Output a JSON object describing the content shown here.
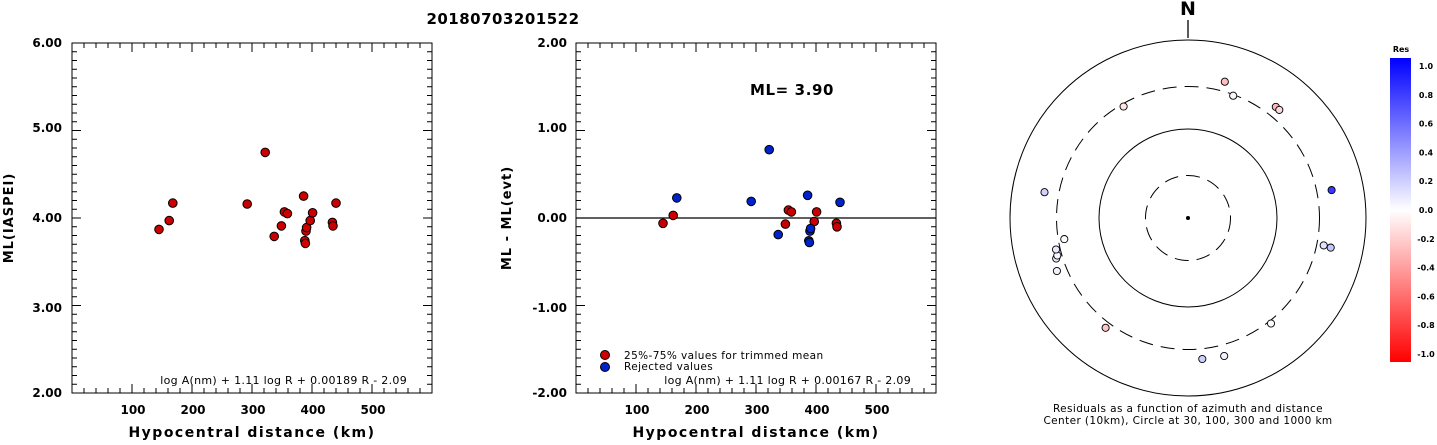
{
  "title": "20180703201522",
  "chart_data": [
    {
      "type": "scatter",
      "ylabel": "ML(IASPEI)",
      "xlabel": "Hypocentral distance (km)",
      "xlim": [
        0,
        600
      ],
      "ylim": [
        2.0,
        6.0
      ],
      "xticks": [
        "100",
        "200",
        "300",
        "400",
        "500"
      ],
      "yticks": [
        "2.00",
        "3.00",
        "4.00",
        "5.00",
        "6.00"
      ],
      "formula": "log A(nm) + 1.11 log R + 0.00189 R - 2.09",
      "series": [
        {
          "color": "#cc0000",
          "points": [
            [
              145,
              3.87
            ],
            [
              162,
              3.97
            ],
            [
              168,
              4.17
            ],
            [
              292,
              4.16
            ],
            [
              322,
              4.75
            ],
            [
              337,
              3.79
            ],
            [
              349,
              3.91
            ],
            [
              354,
              4.07
            ],
            [
              359,
              4.05
            ],
            [
              386,
              4.25
            ],
            [
              388,
              3.74
            ],
            [
              389,
              3.71
            ],
            [
              390,
              3.85
            ],
            [
              391,
              3.89
            ],
            [
              397,
              3.97
            ],
            [
              401,
              4.06
            ],
            [
              434,
              3.95
            ],
            [
              435,
              3.91
            ],
            [
              440,
              4.17
            ]
          ]
        }
      ]
    },
    {
      "type": "scatter",
      "ylabel": "ML - ML(evt)",
      "xlabel": "Hypocentral distance (km)",
      "xlim": [
        0,
        600
      ],
      "ylim": [
        -2.0,
        2.0
      ],
      "xticks": [
        "100",
        "200",
        "300",
        "400",
        "500"
      ],
      "yticks": [
        "-2.00",
        "-1.00",
        "0.00",
        "1.00",
        "2.00"
      ],
      "annotation": "ML= 3.90",
      "formula": "log A(nm) + 1.11 log R + 0.00167 R - 2.09",
      "legend": {
        "position": "bottom-left",
        "entries": [
          {
            "label": "25%-75% values for trimmed mean",
            "color": "#cc0000"
          },
          {
            "label": "Rejected values",
            "color": "#0022cc"
          }
        ]
      },
      "series": [
        {
          "name": "25%-75% values for trimmed mean",
          "color": "#cc0000",
          "points": [
            [
              145,
              -0.06
            ],
            [
              162,
              0.03
            ],
            [
              349,
              -0.07
            ],
            [
              354,
              0.09
            ],
            [
              359,
              0.07
            ],
            [
              397,
              -0.04
            ],
            [
              401,
              0.07
            ],
            [
              434,
              -0.06
            ],
            [
              435,
              -0.1
            ]
          ]
        },
        {
          "name": "Rejected values",
          "color": "#0022cc",
          "points": [
            [
              168,
              0.23
            ],
            [
              292,
              0.19
            ],
            [
              322,
              0.78
            ],
            [
              337,
              -0.19
            ],
            [
              386,
              0.26
            ],
            [
              388,
              -0.26
            ],
            [
              389,
              -0.28
            ],
            [
              390,
              -0.15
            ],
            [
              391,
              -0.12
            ],
            [
              440,
              0.18
            ]
          ]
        }
      ]
    },
    {
      "type": "polar-scatter",
      "north_label": "N",
      "caption_line1": "Residuals as a function of azimuth and distance",
      "caption_line2": "Center (10km), Circle at 30, 100, 300 and 1000 km",
      "rings_km": [
        30,
        100,
        300,
        1000
      ],
      "colorbar": {
        "title": "Res",
        "ticks": [
          "1.0",
          "0.8",
          "0.6",
          "0.4",
          "0.2",
          "0.0",
          "-0.2",
          "-0.4",
          "-0.6",
          "-0.8",
          "-1.0"
        ],
        "stops": [
          {
            "value": 1.0,
            "color": "#0000ff"
          },
          {
            "value": 0.0,
            "color": "#ffffff"
          },
          {
            "value": -1.0,
            "color": "#ff0000"
          }
        ]
      },
      "points": [
        {
          "azimuth": 15.1,
          "distance_km": 386,
          "res": -0.26
        },
        {
          "azimuth": 20.3,
          "distance_km": 292,
          "res": 0.03
        },
        {
          "azimuth": 38.3,
          "distance_km": 390,
          "res": -0.28
        },
        {
          "azimuth": 40.2,
          "distance_km": 389,
          "res": -0.15
        },
        {
          "azimuth": 79.0,
          "distance_km": 440,
          "res": 0.78
        },
        {
          "azimuth": 101.4,
          "distance_km": 359,
          "res": 0.12
        },
        {
          "azimuth": 101.7,
          "distance_km": 434,
          "res": 0.23
        },
        {
          "azimuth": 141.8,
          "distance_km": 322,
          "res": 0.02
        },
        {
          "azimuth": 165.3,
          "distance_km": 401,
          "res": 0.06
        },
        {
          "azimuth": 174.2,
          "distance_km": 391,
          "res": 0.19
        },
        {
          "azimuth": 216.9,
          "distance_km": 349,
          "res": -0.23
        },
        {
          "azimuth": 248.0,
          "distance_km": 388,
          "res": 0.05
        },
        {
          "azimuth": 252.9,
          "distance_km": 354,
          "res": 0.07
        },
        {
          "azimuth": 254.0,
          "distance_km": 337,
          "res": 0.04
        },
        {
          "azimuth": 256.6,
          "distance_km": 335,
          "res": 0.09
        },
        {
          "azimuth": 260.3,
          "distance_km": 257,
          "res": 0.02
        },
        {
          "azimuth": 280.2,
          "distance_km": 435,
          "res": 0.18
        },
        {
          "azimuth": 330.0,
          "distance_km": 280,
          "res": -0.1
        }
      ]
    }
  ]
}
